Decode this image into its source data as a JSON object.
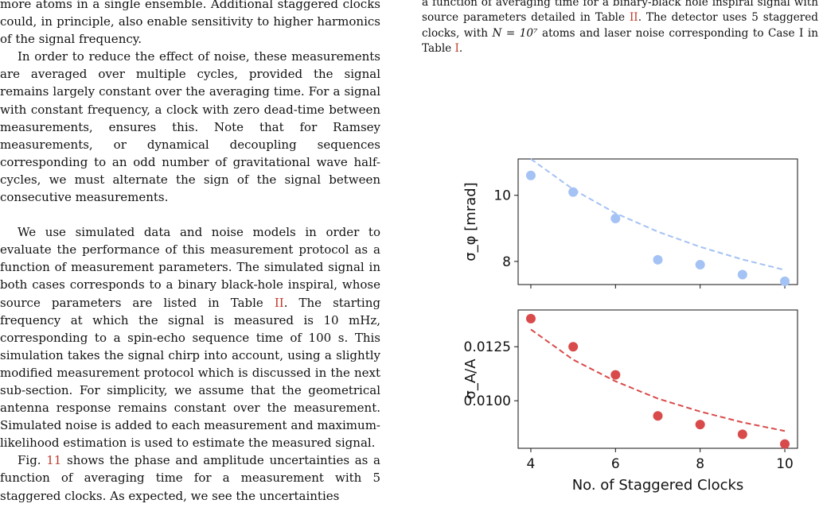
{
  "left_column": {
    "p0": "more atoms in a single ensemble. Additional staggered clocks could, in principle, also enable sensitivity to higher harmonics of the signal frequency.",
    "p1": "In order to reduce the effect of noise, these measurements are averaged over multiple cycles, provided the signal remains largely constant over the averaging time. For a signal with constant frequency, a clock with zero dead-time between measurements, ensures this. Note that for Ramsey measurements, or dynamical decoupling sequences corresponding to an odd number of gravitational wave half-cycles, we must alternate the sign of the signal between consecutive measurements.",
    "p2_before": "We use simulated data and noise models in order to evaluate the performance of this measurement protocol as a function of measurement parameters. The simulated signal in both cases corresponds to a binary black-hole inspiral, whose source parameters are listed in Table ",
    "p2_ref": "II",
    "p2_after": ". The starting frequency at which the signal is measured is 10 mHz, corresponding to a spin-echo sequence time of 100 s. This simulation takes the signal chirp into account, using a slightly modified measurement protocol which is discussed in the next sub-section. For simplicity, we assume that the geometrical antenna response remains constant over the measurement. Simulated noise is added to each measurement and maximum-likelihood estimation is used to estimate the measured signal.",
    "p3_before": "Fig. ",
    "p3_ref": "11",
    "p3_after": " shows the phase and amplitude uncertainties as a function of averaging time for a measurement with 5 staggered clocks. As expected, we see the uncertainties"
  },
  "right_column": {
    "c1": "a function of averaging time for a binary-black hole inspiral signal with source parameters detailed in Table ",
    "c1_ref": "II",
    "c2": ". The detector uses 5 staggered clocks, with ",
    "c2_math": "N = 10⁷",
    "c3": " atoms and laser noise corresponding to Case I in Table ",
    "c3_ref": "I",
    "c4": "."
  },
  "chart_data": [
    {
      "type": "scatter",
      "ylabel": "σ_φ [mrad]",
      "yticks": [
        "8",
        "10"
      ],
      "ylim": [
        7.3,
        11.1
      ],
      "xlim": [
        3.7,
        10.3
      ],
      "color": "#a4c2f4",
      "x": [
        4,
        5,
        6,
        7,
        8,
        9,
        10
      ],
      "y": [
        10.6,
        10.1,
        9.3,
        8.05,
        7.9,
        7.6,
        7.4
      ],
      "fit_label": "dashed fit curve",
      "fit_y": [
        11.1,
        10.18,
        9.46,
        8.9,
        8.44,
        8.06,
        7.74
      ]
    },
    {
      "type": "scatter",
      "ylabel": "σ_A/A",
      "yticks": [
        "0.0100",
        "0.0125"
      ],
      "ylim": [
        0.0078,
        0.0142
      ],
      "xlim": [
        3.7,
        10.3
      ],
      "xticks": [
        "4",
        "6",
        "8",
        "10"
      ],
      "xlabel": "No. of Staggered Clocks",
      "color": "#d94b4b",
      "x": [
        4,
        5,
        6,
        7,
        8,
        9,
        10
      ],
      "y": [
        0.0138,
        0.0125,
        0.0112,
        0.0093,
        0.0089,
        0.00845,
        0.008
      ],
      "fit_y": [
        0.0133,
        0.0119,
        0.0109,
        0.0101,
        0.0095,
        0.009,
        0.0086
      ]
    }
  ]
}
